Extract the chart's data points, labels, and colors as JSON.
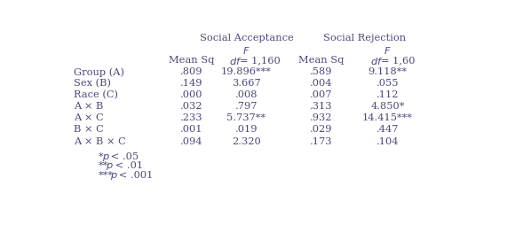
{
  "title_left": "Social Acceptance",
  "title_right": "Social Rejection",
  "rows": [
    {
      "label": "Group (A)",
      "sa_msq": ".809",
      "sa_f": "19.896***",
      "sr_msq": ".589",
      "sr_f": "9.118**"
    },
    {
      "label": "Sex (B)",
      "sa_msq": ".149",
      "sa_f": "3.667",
      "sr_msq": ".004",
      "sr_f": ".055"
    },
    {
      "label": "Race (C)",
      "sa_msq": ".000",
      "sa_f": ".008",
      "sr_msq": ".007",
      "sr_f": ".112"
    },
    {
      "label": "A × B",
      "sa_msq": ".032",
      "sa_f": ".797",
      "sr_msq": ".313",
      "sr_f": "4.850*"
    },
    {
      "label": "A × C",
      "sa_msq": ".233",
      "sa_f": "5.737**",
      "sr_msq": ".932",
      "sr_f": "14.415***"
    },
    {
      "label": "B × C",
      "sa_msq": ".001",
      "sa_f": ".019",
      "sr_msq": ".029",
      "sr_f": ".447"
    },
    {
      "label": "A × B × C",
      "sa_msq": ".094",
      "sa_f": "2.320",
      "sr_msq": ".173",
      "sr_f": ".104"
    }
  ],
  "footnotes": [
    {
      "stars": "*",
      "rest": "p < .05"
    },
    {
      "stars": "**",
      "rest": "p < .01"
    },
    {
      "stars": "***",
      "rest": "p < .001"
    }
  ],
  "text_color": "#4a4a7a",
  "bg_color": "#ffffff",
  "fs": 8.2
}
